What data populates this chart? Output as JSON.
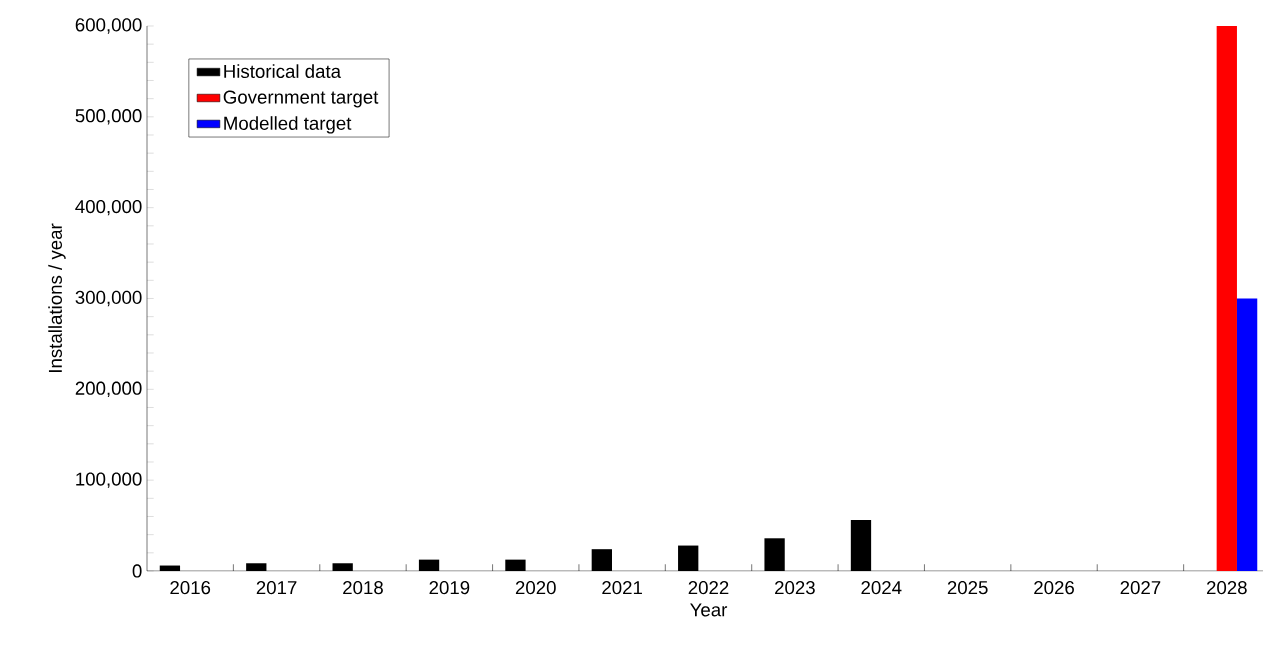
{
  "chart_data": {
    "type": "bar",
    "xlabel": "Year",
    "ylabel": "Installations / year",
    "categories": [
      "2016",
      "2017",
      "2018",
      "2019",
      "2020",
      "2021",
      "2022",
      "2023",
      "2024",
      "2025",
      "2026",
      "2027",
      "2028"
    ],
    "series": [
      {
        "name": "Historical data",
        "color": "#000000",
        "values": [
          6000,
          8500,
          8500,
          12500,
          12500,
          24000,
          28000,
          36000,
          56000,
          null,
          null,
          null,
          null
        ]
      },
      {
        "name": "Government target",
        "color": "#ff0000",
        "values": [
          null,
          null,
          null,
          null,
          null,
          null,
          null,
          null,
          null,
          null,
          null,
          null,
          600000
        ]
      },
      {
        "name": "Modelled target",
        "color": "#0000ff",
        "values": [
          null,
          null,
          null,
          null,
          null,
          null,
          null,
          null,
          null,
          null,
          null,
          null,
          300000
        ]
      }
    ],
    "ylim": [
      0,
      600000
    ],
    "yticks": [
      0,
      {
        "value": 100000,
        "label": "100,000"
      },
      {
        "value": 200000,
        "label": "200,000"
      },
      {
        "value": 300000,
        "label": "300,000"
      },
      {
        "value": 400000,
        "label": "400,000"
      },
      {
        "value": 500000,
        "label": "500,000"
      },
      {
        "value": 600000,
        "label": "600,000"
      }
    ],
    "legend": "top left"
  }
}
